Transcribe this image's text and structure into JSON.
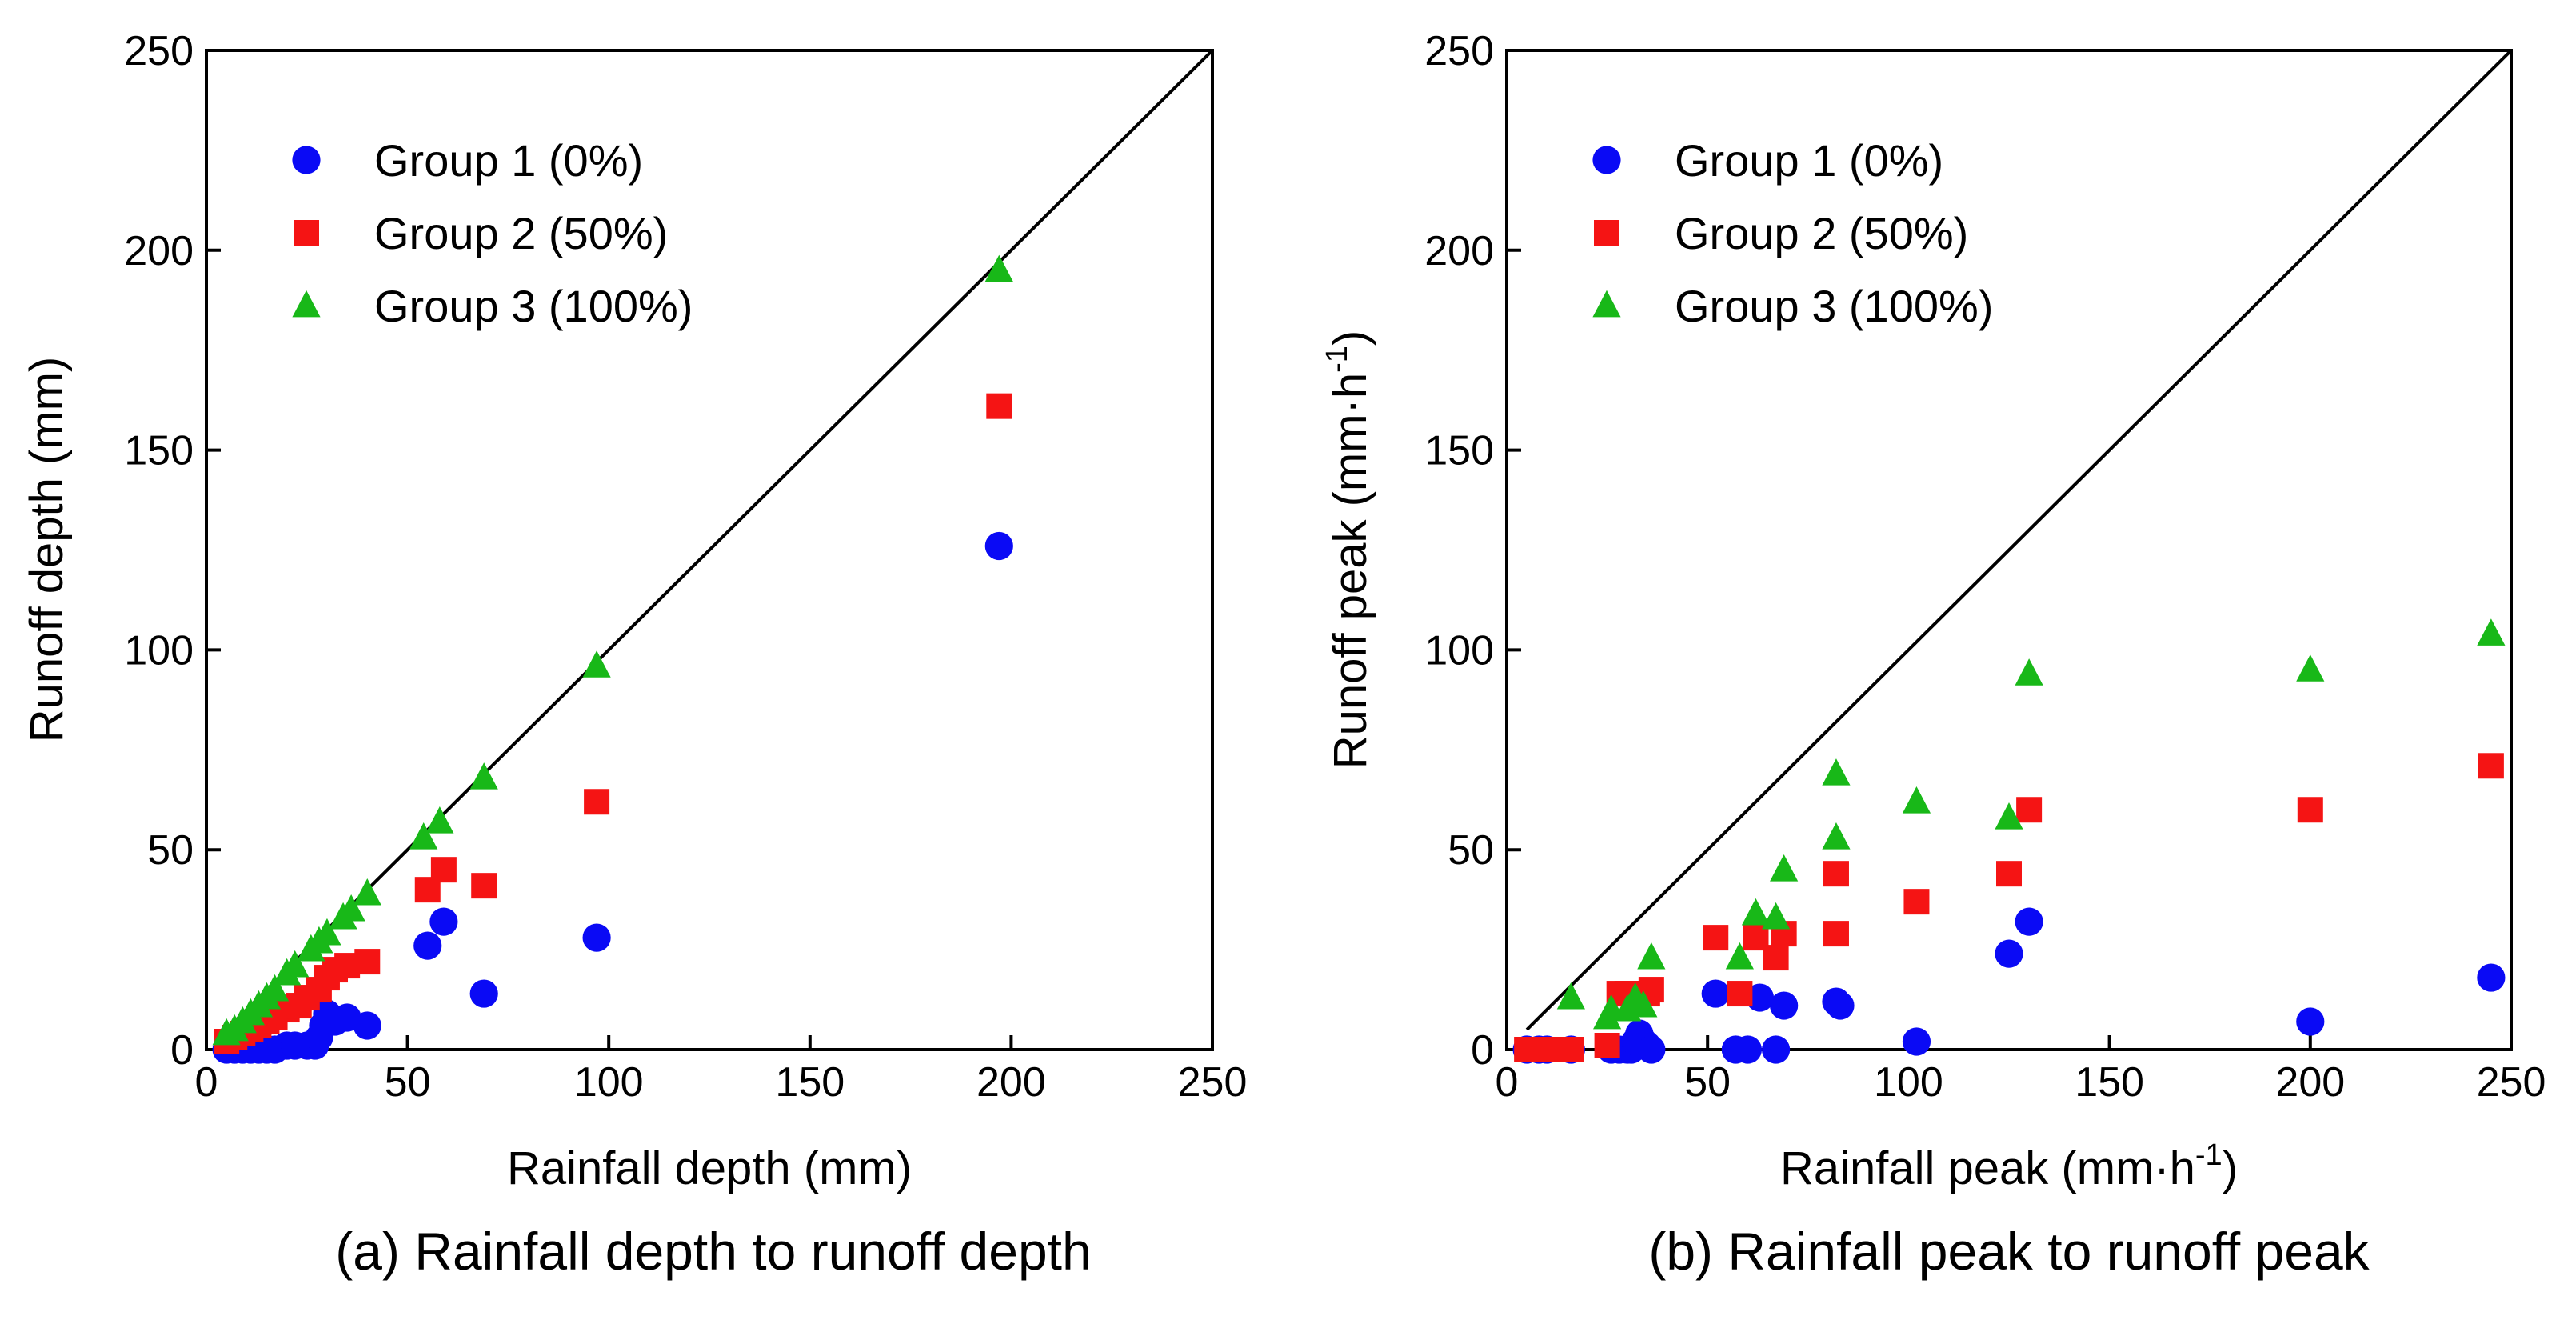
{
  "colors": {
    "group1": "#0a0af5",
    "group2": "#f51414",
    "group3": "#18b818",
    "axis": "#000000"
  },
  "chart_data": [
    {
      "type": "scatter",
      "panel": "a",
      "caption": "(a) Rainfall depth to runoff depth",
      "xlabel": "Rainfall depth (mm)",
      "ylabel": "Runoff depth (mm)",
      "xlim": [
        0,
        250
      ],
      "ylim": [
        0,
        250
      ],
      "xticks": [
        0,
        50,
        100,
        150,
        200,
        250
      ],
      "yticks": [
        0,
        50,
        100,
        150,
        200,
        250
      ],
      "reference_line": "1:1",
      "legend": "top-left",
      "series": [
        {
          "name": "Group 1 (0%)",
          "marker": "circle",
          "color_key": "group1",
          "points": [
            [
              5,
              0
            ],
            [
              7,
              0
            ],
            [
              9,
              0
            ],
            [
              11,
              0
            ],
            [
              13,
              0
            ],
            [
              15,
              0
            ],
            [
              17,
              0
            ],
            [
              20,
              1
            ],
            [
              22,
              1
            ],
            [
              25,
              1
            ],
            [
              27,
              1
            ],
            [
              28,
              3
            ],
            [
              29,
              6
            ],
            [
              30,
              9
            ],
            [
              32,
              7
            ],
            [
              35,
              8
            ],
            [
              40,
              6
            ],
            [
              55,
              26
            ],
            [
              59,
              32
            ],
            [
              69,
              14
            ],
            [
              97,
              28
            ],
            [
              197,
              126
            ]
          ]
        },
        {
          "name": "Group 2 (50%)",
          "marker": "square",
          "color_key": "group2",
          "points": [
            [
              5,
              2
            ],
            [
              7,
              3
            ],
            [
              9,
              4
            ],
            [
              11,
              5
            ],
            [
              13,
              6
            ],
            [
              15,
              7
            ],
            [
              17,
              8
            ],
            [
              20,
              10
            ],
            [
              23,
              11
            ],
            [
              25,
              13
            ],
            [
              28,
              15
            ],
            [
              30,
              18
            ],
            [
              32,
              20
            ],
            [
              35,
              21
            ],
            [
              40,
              22
            ],
            [
              55,
              40
            ],
            [
              59,
              45
            ],
            [
              69,
              41
            ],
            [
              97,
              62
            ],
            [
              197,
              161
            ]
          ]
        },
        {
          "name": "Group 3 (100%)",
          "marker": "triangle",
          "color_key": "group3",
          "points": [
            [
              5,
              4
            ],
            [
              7,
              5
            ],
            [
              9,
              7
            ],
            [
              11,
              9
            ],
            [
              13,
              11
            ],
            [
              15,
              13
            ],
            [
              17,
              15
            ],
            [
              20,
              19
            ],
            [
              22,
              21
            ],
            [
              26,
              25
            ],
            [
              28,
              27
            ],
            [
              30,
              29
            ],
            [
              34,
              33
            ],
            [
              36,
              35
            ],
            [
              40,
              39
            ],
            [
              54,
              53
            ],
            [
              58,
              57
            ],
            [
              69,
              68
            ],
            [
              97,
              96
            ],
            [
              197,
              195
            ]
          ]
        }
      ]
    },
    {
      "type": "scatter",
      "panel": "b",
      "caption": "(b) Rainfall peak to runoff peak",
      "xlabel": "Rainfall peak (mm·h",
      "xlabel_sup": "-1",
      "xlabel_tail": ")",
      "ylabel": "Runoff peak (mm·h",
      "ylabel_sup": "-1",
      "ylabel_tail": ")",
      "xlim": [
        0,
        250
      ],
      "ylim": [
        0,
        250
      ],
      "xticks": [
        0,
        50,
        100,
        150,
        200,
        250
      ],
      "yticks": [
        0,
        50,
        100,
        150,
        200,
        250
      ],
      "reference_line": "1:1",
      "legend": "top-left",
      "series": [
        {
          "name": "Group 1 (0%)",
          "marker": "circle",
          "color_key": "group1",
          "points": [
            [
              5,
              0
            ],
            [
              8,
              0
            ],
            [
              10,
              0
            ],
            [
              16,
              0
            ],
            [
              26,
              0
            ],
            [
              28,
              0
            ],
            [
              30,
              0
            ],
            [
              31,
              0
            ],
            [
              32,
              2
            ],
            [
              33,
              4
            ],
            [
              34,
              2
            ],
            [
              35,
              1
            ],
            [
              36,
              0
            ],
            [
              52,
              14
            ],
            [
              57,
              0
            ],
            [
              60,
              0
            ],
            [
              63,
              13
            ],
            [
              67,
              0
            ],
            [
              69,
              11
            ],
            [
              82,
              12
            ],
            [
              83,
              11
            ],
            [
              102,
              2
            ],
            [
              125,
              24
            ],
            [
              130,
              32
            ],
            [
              200,
              7
            ],
            [
              245,
              18
            ]
          ]
        },
        {
          "name": "Group 2 (50%)",
          "marker": "square",
          "color_key": "group2",
          "points": [
            [
              5,
              0
            ],
            [
              10,
              0
            ],
            [
              16,
              0
            ],
            [
              25,
              1
            ],
            [
              28,
              14
            ],
            [
              30,
              14
            ],
            [
              32,
              14
            ],
            [
              35,
              14
            ],
            [
              36,
              15
            ],
            [
              52,
              28
            ],
            [
              58,
              14
            ],
            [
              62,
              28
            ],
            [
              67,
              23
            ],
            [
              69,
              29
            ],
            [
              82,
              29
            ],
            [
              82,
              44
            ],
            [
              102,
              37
            ],
            [
              125,
              44
            ],
            [
              130,
              60
            ],
            [
              200,
              60
            ],
            [
              245,
              71
            ]
          ]
        },
        {
          "name": "Group 3 (100%)",
          "marker": "triangle",
          "color_key": "group3",
          "points": [
            [
              16,
              13
            ],
            [
              25,
              8
            ],
            [
              26,
              10
            ],
            [
              30,
              10
            ],
            [
              32,
              13
            ],
            [
              34,
              11
            ],
            [
              36,
              23
            ],
            [
              58,
              23
            ],
            [
              62,
              34
            ],
            [
              67,
              33
            ],
            [
              69,
              45
            ],
            [
              82,
              53
            ],
            [
              82,
              69
            ],
            [
              102,
              62
            ],
            [
              125,
              58
            ],
            [
              130,
              94
            ],
            [
              200,
              95
            ],
            [
              245,
              104
            ]
          ]
        }
      ]
    }
  ]
}
